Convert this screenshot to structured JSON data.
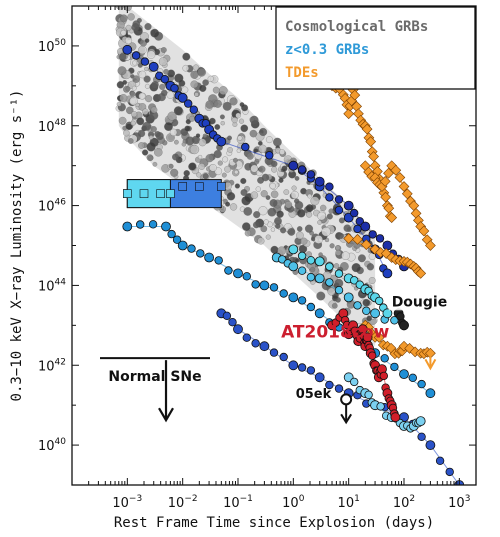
{
  "chart_data": {
    "type": "scatter",
    "xlabel": "Rest Frame Time since Explosion (days)",
    "ylabel": "0.3−10 keV X−ray Luminosity (erg s⁻¹)",
    "x_scale": "log",
    "y_scale": "log",
    "xlim": [
      0.0001,
      2000
    ],
    "ylim": [
      1e+39,
      1e+51
    ],
    "grid": false,
    "legend_position": "top-right",
    "x_ticks": [
      {
        "value": 0.001,
        "base": "10",
        "exp": "−3"
      },
      {
        "value": 0.01,
        "base": "10",
        "exp": "−2"
      },
      {
        "value": 0.1,
        "base": "10",
        "exp": "−1"
      },
      {
        "value": 1,
        "base": "10",
        "exp": "0"
      },
      {
        "value": 10,
        "base": "10",
        "exp": "1"
      },
      {
        "value": 100,
        "base": "10",
        "exp": "2"
      },
      {
        "value": 1000,
        "base": "10",
        "exp": "3"
      }
    ],
    "y_ticks": [
      {
        "value": 1e+40,
        "base": "10",
        "exp": "40"
      },
      {
        "value": 1e+42,
        "base": "10",
        "exp": "42"
      },
      {
        "value": 1e+44,
        "base": "10",
        "exp": "44"
      },
      {
        "value": 1e+46,
        "base": "10",
        "exp": "46"
      },
      {
        "value": 1e+48,
        "base": "10",
        "exp": "48"
      },
      {
        "value": 1e+50,
        "base": "10",
        "exp": "50"
      }
    ],
    "legend": [
      {
        "label": "Cosmological GRBs",
        "color": "#6b6b6b"
      },
      {
        "label": "z<0.3 GRBs",
        "color": "#2f9ad8"
      },
      {
        "label": "TDEs",
        "color": "#f39a2c"
      }
    ],
    "annotations": [
      {
        "text": "AT2018cow",
        "color": "#cc1f2f",
        "x": 0.6,
        "y": 5e+42
      },
      {
        "text": "Dougie",
        "color": "#111111",
        "x": 60,
        "y": 3e+43
      },
      {
        "text": "05ek",
        "color": "#111111",
        "x": 1.2,
        "y": 1.5e+41
      },
      {
        "text": "Normal SNe",
        "color": "#111111",
        "x": 0.005,
        "y": 3e+41
      }
    ],
    "upper_limits": [
      {
        "name": "Normal SNe",
        "x": 0.005,
        "y": 1.5e+41
      },
      {
        "name": "05ek",
        "x": 9,
        "y": 1.4e+41
      },
      {
        "name": "TDE",
        "x": 300,
        "y": 2.5e+42
      }
    ],
    "series": [
      {
        "name": "Cosmological GRBs",
        "color": "#8a8a8a",
        "style": "band",
        "x": [
          0.0007,
          0.001,
          0.003,
          0.01,
          0.03,
          0.1,
          0.3,
          1,
          3,
          10,
          30
        ],
        "y_low": [
          1e+48,
          5e+47,
          1e+47,
          3e+46,
          1e+46,
          3e+45,
          1e+45,
          2e+44,
          5e+43,
          1e+43,
          3e+42
        ],
        "y_high": [
          2e+51,
          1e+51,
          3e+50,
          8e+49,
          2e+49,
          5e+48,
          1e+48,
          2e+47,
          5e+46,
          1e+46,
          2e+45
        ]
      },
      {
        "name": "z<0.3 GRBs",
        "color": "#1f3fbf",
        "style": "points",
        "x": [
          0.001,
          0.003,
          0.006,
          0.01,
          0.02,
          0.03,
          0.05,
          1,
          3,
          10,
          30,
          50
        ],
        "y": [
          8e+49,
          3e+49,
          1e+49,
          5e+48,
          1.5e+48,
          8e+47,
          4e+47,
          1e+47,
          3e+46,
          5e+45,
          8e+44,
          2e+44
        ]
      },
      {
        "name": "z<0.3 GRBs",
        "color": "#1c2fa8",
        "style": "points",
        "x": [
          1,
          3,
          10,
          20,
          50,
          100
        ],
        "y": [
          1e+47,
          4e+46,
          1e+46,
          3e+45,
          1e+45,
          3e+44
        ]
      },
      {
        "name": "z<0.3 GRBs",
        "color": "#3d7fe0",
        "style": "block",
        "x": [
          0.001,
          0.003,
          0.005,
          0.01,
          0.02,
          0.05
        ],
        "y": [
          2e+46,
          2e+46,
          2.5e+46,
          3e+46,
          3e+46,
          3e+46
        ]
      },
      {
        "name": "z<0.3 GRBs",
        "color": "#5fd7f0",
        "style": "block",
        "x": [
          0.001,
          0.002,
          0.004,
          0.006
        ],
        "y": [
          2e+46,
          2e+46,
          2e+46,
          2e+46
        ]
      },
      {
        "name": "z<0.3 GRBs",
        "color": "#1f8fd6",
        "style": "points",
        "x": [
          0.001,
          0.005,
          0.01,
          0.03,
          0.1,
          0.3,
          1,
          3,
          10,
          30,
          100,
          300
        ],
        "y": [
          3e+45,
          3e+45,
          1e+45,
          5e+44,
          2e+44,
          1e+44,
          5e+43,
          2e+43,
          6e+42,
          2e+42,
          6e+41,
          2e+41
        ]
      },
      {
        "name": "z<0.3 GRBs",
        "color": "#2a52c8",
        "style": "points",
        "x": [
          0.05,
          0.1,
          0.3,
          1,
          3,
          10,
          30,
          100,
          300,
          1000
        ],
        "y": [
          2e+43,
          8e+42,
          3e+42,
          1e+42,
          5e+41,
          2e+41,
          1e+41,
          5e+40,
          1e+40,
          1e+39
        ]
      },
      {
        "name": "z<0.3 GRBs",
        "color": "#4ec0e8",
        "style": "points",
        "x": [
          0.5,
          1,
          3,
          10,
          30,
          100
        ],
        "y": [
          5e+44,
          3e+44,
          1.5e+44,
          5e+43,
          2e+43,
          1e+43
        ]
      },
      {
        "name": "z<0.3 GRBs",
        "color": "#5ad6ea",
        "style": "points",
        "x": [
          1,
          3,
          10,
          20,
          30,
          50
        ],
        "y": [
          8e+44,
          4e+44,
          1.5e+44,
          8e+43,
          5e+43,
          2e+43
        ]
      },
      {
        "name": "z<0.3 GRBs",
        "color": "#7bd0f0",
        "style": "points",
        "x": [
          10,
          20,
          30,
          60,
          100,
          150,
          200
        ],
        "y": [
          5e+41,
          2e+41,
          1e+41,
          5e+40,
          3e+40,
          3e+40,
          4e+40
        ]
      },
      {
        "name": "TDEs",
        "color": "#f39a2c",
        "style": "points",
        "x": [
          5,
          8,
          10,
          12,
          15,
          20,
          25,
          30,
          40,
          50,
          60
        ],
        "y": [
          1e+49,
          6e+48,
          2e+48,
          8e+48,
          2e+48,
          1e+48,
          4e+47,
          1e+47,
          3e+46,
          1e+46,
          5e+45
        ]
      },
      {
        "name": "TDEs",
        "color": "#f39a2c",
        "style": "points",
        "x": [
          20,
          30,
          40,
          60,
          100,
          150,
          200,
          300
        ],
        "y": [
          1e+47,
          5e+46,
          3e+46,
          1e+47,
          3e+46,
          1e+46,
          3e+45,
          1e+45
        ]
      },
      {
        "name": "TDEs",
        "color": "#f39a2c",
        "style": "points",
        "x": [
          20,
          30,
          50,
          80,
          100,
          200,
          300
        ],
        "y": [
          1e+43,
          5e+42,
          3e+42,
          2e+42,
          3e+42,
          2e+42,
          2e+42
        ]
      },
      {
        "name": "TDEs",
        "color": "#f39a2c",
        "style": "points",
        "x": [
          10,
          30,
          60,
          100,
          150,
          200
        ],
        "y": [
          1.5e+45,
          8e+44,
          5e+44,
          4e+44,
          3e+44,
          2e+44
        ]
      },
      {
        "name": "AT2018cow",
        "color": "#d11f2a",
        "style": "points",
        "x": [
          5,
          8,
          10,
          12,
          15,
          18,
          20,
          22,
          25,
          30,
          35,
          40,
          50,
          60,
          70
        ],
        "y": [
          1e+43,
          2e+43,
          6e+42,
          1e+43,
          4e+42,
          8e+42,
          3e+42,
          5e+42,
          2e+42,
          1e+42,
          5e+41,
          8e+41,
          2e+41,
          1e+41,
          5e+40
        ]
      },
      {
        "name": "Dougie",
        "color": "#222222",
        "style": "points",
        "x": [
          80,
          100
        ],
        "y": [
          2e+43,
          1e+43
        ]
      }
    ]
  }
}
